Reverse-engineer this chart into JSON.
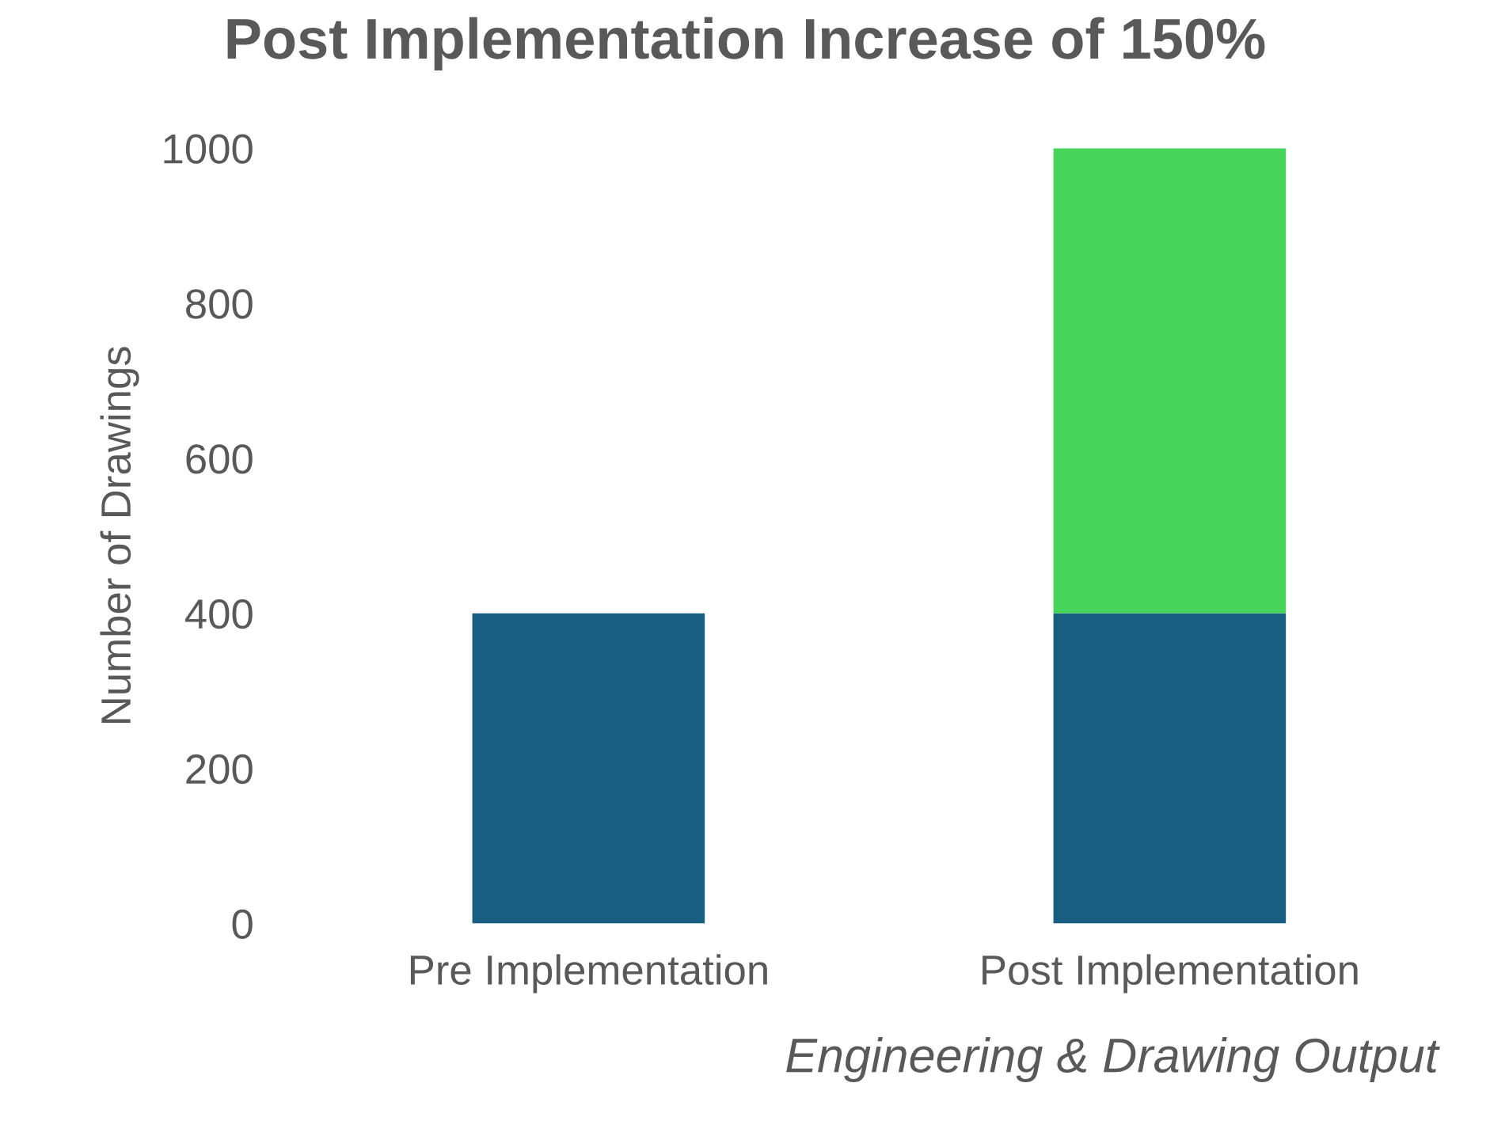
{
  "chart_data": {
    "type": "bar",
    "title": "Post Implementation Increase of 150%",
    "xlabel": "Engineering & Drawing Output",
    "ylabel": "Number of Drawings",
    "categories": [
      "Pre Implementation",
      "Post Implementation"
    ],
    "stacked": true,
    "series": [
      {
        "color": "#185e80",
        "values": [
          400,
          400
        ]
      },
      {
        "color": "#46d45a",
        "values": [
          null,
          600
        ]
      }
    ],
    "ylim": [
      0,
      1000
    ],
    "yticks": [
      0,
      200,
      400,
      600,
      800,
      1000
    ],
    "grid": false,
    "legend": false
  }
}
